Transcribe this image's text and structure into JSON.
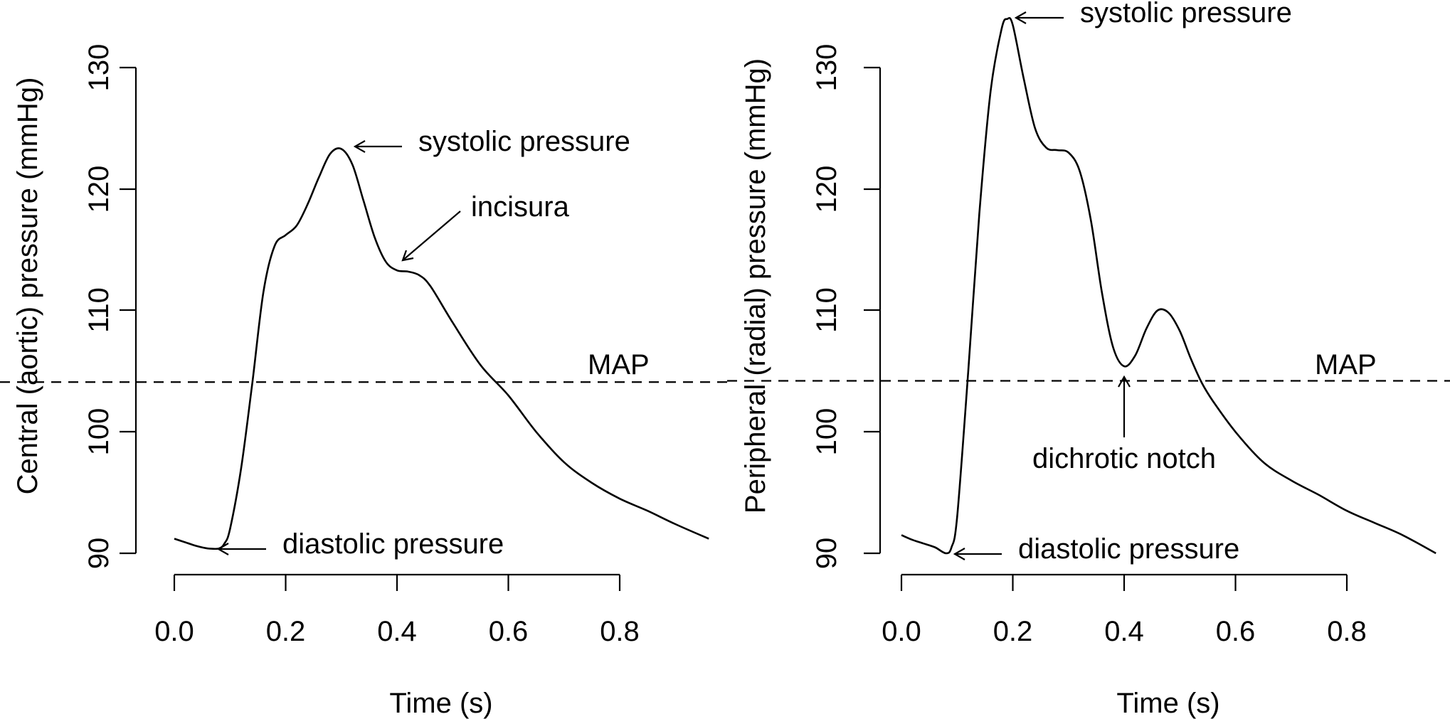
{
  "chart_data": [
    {
      "type": "line",
      "xlabel": "Time (s)",
      "ylabel": "Central (aortic) pressure (mmHg)",
      "xlim": [
        0,
        0.96
      ],
      "ylim": [
        90,
        130
      ],
      "x_ticks": [
        "0.0",
        "0.2",
        "0.4",
        "0.6",
        "0.8"
      ],
      "y_ticks": [
        "90",
        "100",
        "110",
        "120",
        "130"
      ],
      "grid": false,
      "map_value": 104.1,
      "series": [
        {
          "x": [
            0.0,
            0.02,
            0.04,
            0.06,
            0.08,
            0.09,
            0.1,
            0.12,
            0.14,
            0.16,
            0.18,
            0.2,
            0.22,
            0.24,
            0.26,
            0.28,
            0.3,
            0.32,
            0.34,
            0.36,
            0.38,
            0.4,
            0.42,
            0.44,
            0.46,
            0.5,
            0.55,
            0.6,
            0.65,
            0.7,
            0.75,
            0.8,
            0.85,
            0.9,
            0.96
          ],
          "y": [
            91.2,
            90.9,
            90.6,
            90.4,
            90.4,
            90.8,
            92.0,
            97.0,
            104.0,
            111.5,
            115.3,
            116.2,
            117.0,
            118.8,
            121.0,
            122.9,
            123.3,
            122.0,
            119.0,
            116.0,
            114.0,
            113.3,
            113.2,
            112.9,
            112.0,
            109.0,
            105.5,
            103.0,
            100.0,
            97.5,
            95.8,
            94.5,
            93.5,
            92.4,
            91.2
          ]
        }
      ],
      "annotations": [
        {
          "text": "systolic pressure",
          "point": [
            0.31,
            123.3
          ]
        },
        {
          "text": "incisura",
          "point": [
            0.41,
            113.6
          ]
        },
        {
          "text": "diastolic pressure",
          "point": [
            0.08,
            90.4
          ]
        },
        {
          "text": "MAP"
        }
      ]
    },
    {
      "type": "line",
      "xlabel": "Time (s)",
      "ylabel": "Peripheral (radial) pressure (mmHg)",
      "xlim": [
        0,
        0.96
      ],
      "ylim": [
        90,
        130
      ],
      "x_ticks": [
        "0.0",
        "0.2",
        "0.4",
        "0.6",
        "0.8"
      ],
      "y_ticks": [
        "90",
        "100",
        "110",
        "120",
        "130"
      ],
      "grid": false,
      "map_value": 104.2,
      "series": [
        {
          "x": [
            0.0,
            0.02,
            0.04,
            0.06,
            0.08,
            0.09,
            0.1,
            0.12,
            0.14,
            0.16,
            0.18,
            0.19,
            0.2,
            0.22,
            0.24,
            0.26,
            0.28,
            0.3,
            0.32,
            0.34,
            0.36,
            0.38,
            0.4,
            0.42,
            0.44,
            0.46,
            0.48,
            0.5,
            0.52,
            0.54,
            0.56,
            0.6,
            0.65,
            0.7,
            0.75,
            0.8,
            0.85,
            0.9,
            0.96
          ],
          "y": [
            91.5,
            91.1,
            90.8,
            90.5,
            90.0,
            90.5,
            93.0,
            105.0,
            118.0,
            128.0,
            133.2,
            134.0,
            133.5,
            129.0,
            125.0,
            123.4,
            123.2,
            123.0,
            121.5,
            117.5,
            111.5,
            107.0,
            105.4,
            106.3,
            108.5,
            110.0,
            109.8,
            108.3,
            106.0,
            104.0,
            102.5,
            100.0,
            97.5,
            96.0,
            94.8,
            93.5,
            92.5,
            91.5,
            90.0
          ]
        }
      ],
      "annotations": [
        {
          "text": "systolic pressure",
          "point": [
            0.19,
            134.0
          ]
        },
        {
          "text": "dichrotic notch",
          "point": [
            0.4,
            105.4
          ]
        },
        {
          "text": "diastolic pressure",
          "point": [
            0.08,
            90.0
          ]
        },
        {
          "text": "MAP"
        }
      ]
    }
  ]
}
